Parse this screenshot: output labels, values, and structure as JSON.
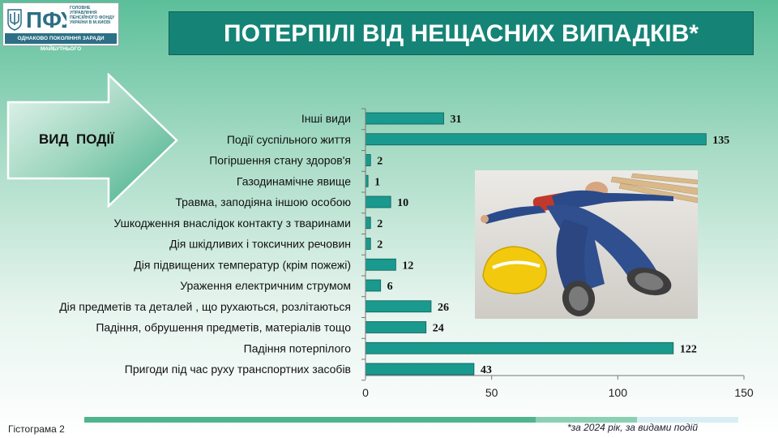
{
  "logo": {
    "abbr": "ПФУ",
    "org_line1": "ГОЛОВНЕ УПРАВЛІННЯ",
    "org_line2": "ПЕНСІЙНОГО ФОНДУ",
    "org_line3": "УКРАЇНИ В М.КИЄВІ",
    "tagline": "ОДНАКОВО ПОКОЛІННЯ ЗАРАДИ МАЙБУТНЬОГО"
  },
  "header": {
    "title": "ПОТЕРПІЛІ ВІД НЕЩАСНИХ ВИПАДКІВ*"
  },
  "arrow": {
    "label": "ВИД  ПОДІЇ"
  },
  "footer": {
    "left_caption": "Гістограма 2",
    "right_caption": "*за 2024 рік, за видами  подій"
  },
  "colors": {
    "bar": "#1a9a8e",
    "bar_stroke": "#0d5f57",
    "title_bg": "#158476"
  },
  "chart_data": {
    "type": "bar",
    "orientation": "horizontal",
    "categories": [
      "Інші види",
      "Події суспільного життя",
      "Погіршення стану здоров'я",
      "Газодинамічне явище",
      "Травма, заподіяна іншою особою",
      "Ушкодження внаслідок контакту з тваринами",
      "Дія шкідливих і токсичних речовин",
      "Дія підвищених температур (крім пожежі)",
      "Ураження електричним струмом",
      "Дія предметів та деталей , що рухаються, розлітаються",
      "Падіння, обрушення предметів, матеріалів тощо",
      "Падіння потерпілого",
      "Пригоди під час руху транспортних засобів"
    ],
    "values": [
      31,
      135,
      2,
      1,
      10,
      2,
      2,
      12,
      6,
      26,
      24,
      122,
      43
    ],
    "xlim": [
      0,
      150
    ],
    "xticks": [
      0,
      50,
      100,
      150
    ],
    "grid": false
  }
}
